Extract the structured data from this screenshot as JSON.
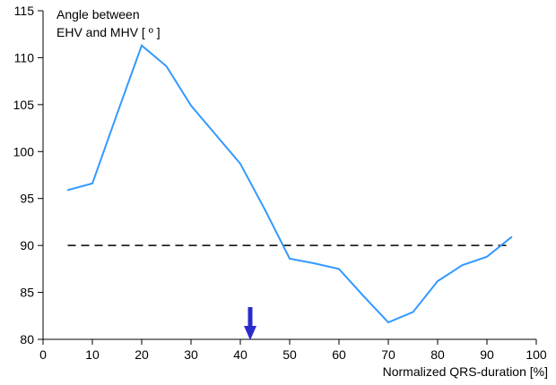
{
  "chart_data": {
    "type": "line",
    "ylabel_lines": [
      "Angle between",
      "EHV and MHV [ º ]"
    ],
    "xlabel": "Normalized QRS-duration [%]",
    "xlim": [
      0,
      100
    ],
    "ylim": [
      80,
      115
    ],
    "xticks": [
      0,
      10,
      20,
      30,
      40,
      50,
      60,
      70,
      80,
      90,
      100
    ],
    "yticks": [
      80,
      85,
      90,
      95,
      100,
      105,
      110,
      115
    ],
    "grid": false,
    "series": [
      {
        "color": "#3399ff",
        "x": [
          5,
          10,
          15,
          20,
          25,
          30,
          35,
          40,
          45,
          50,
          55,
          60,
          65,
          70,
          75,
          80,
          85,
          90,
          95
        ],
        "y": [
          95.9,
          96.6,
          104.0,
          111.3,
          109.1,
          104.9,
          101.8,
          98.7,
          93.8,
          88.6,
          88.1,
          87.5,
          84.6,
          81.8,
          82.9,
          86.2,
          87.9,
          88.8,
          90.9
        ]
      }
    ],
    "reference_line": {
      "y": 90,
      "x_start": 5,
      "x_end": 95,
      "color": "#000000",
      "style": "dashed"
    },
    "marker": {
      "type": "arrow-down",
      "x": 42,
      "color": "#2b2bcc"
    }
  }
}
